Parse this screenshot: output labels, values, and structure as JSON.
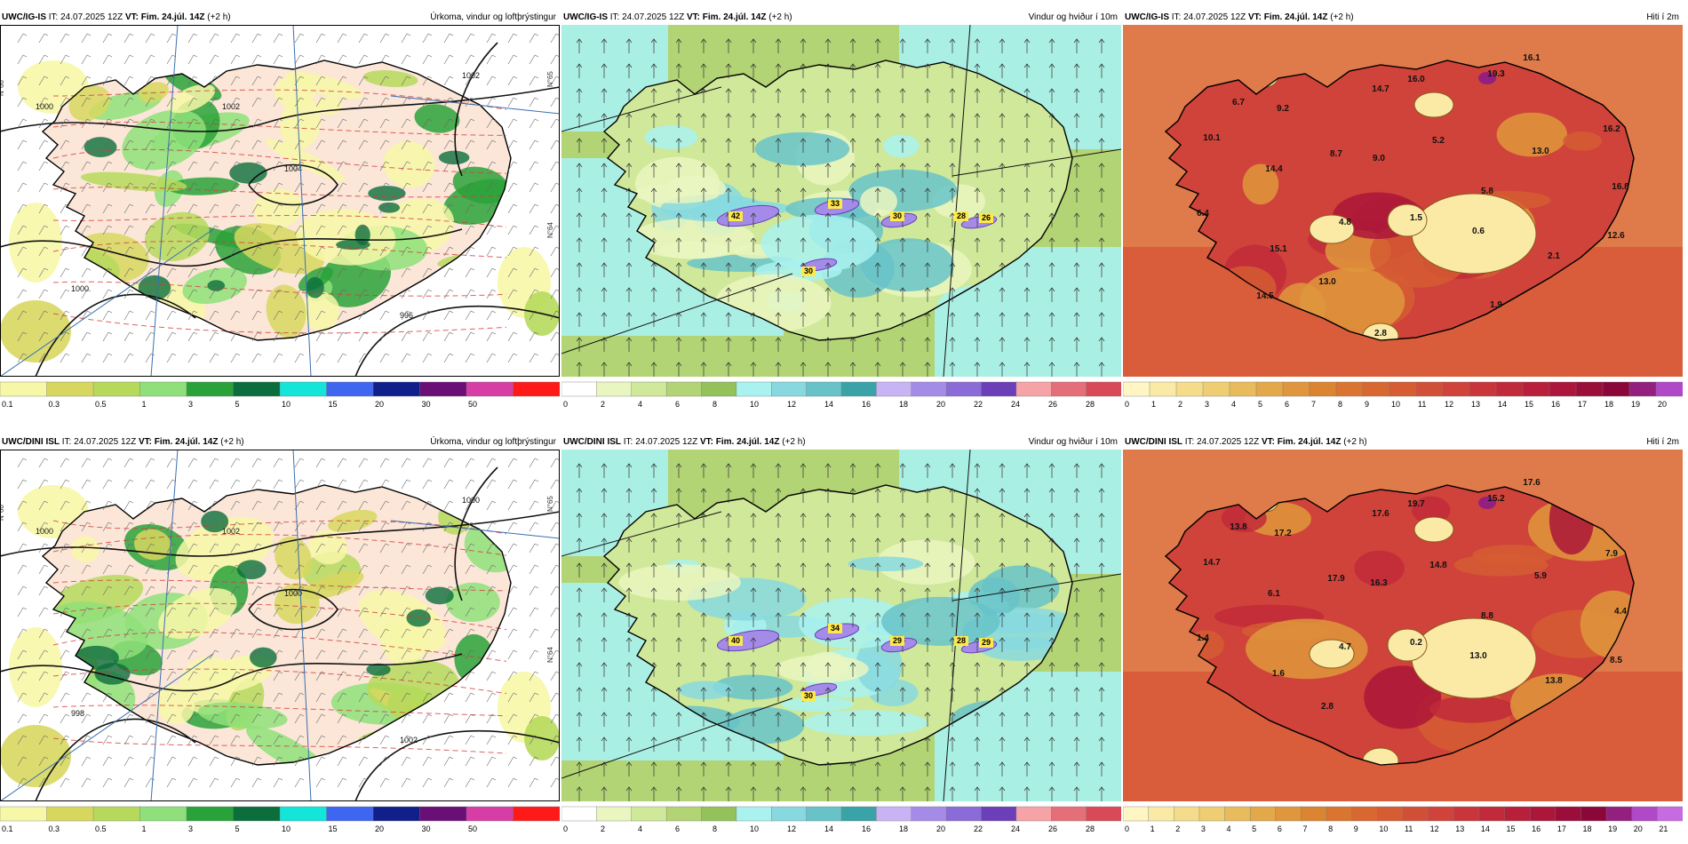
{
  "panels": [
    {
      "id": "ig-precip",
      "model": "UWC/IG-IS",
      "it_label": "IT:",
      "it_value": "24.07.2025 12Z",
      "vt_label": "VT:",
      "vt_value": "Fim. 24.júl. 14Z",
      "lead": "(+2 h)",
      "title": "Úrkoma, vindur og loftþrýstingur",
      "kind": "precip",
      "isobars": [
        "1000",
        "1002",
        "1004",
        "1000",
        "996",
        "1002"
      ],
      "grid_labels": [
        "N°65",
        "N°64",
        "N°66"
      ],
      "legend": {
        "ticks": [
          "0.1",
          "0.3",
          "0.5",
          "1",
          "3",
          "5",
          "10",
          "15",
          "20",
          "30",
          "50"
        ],
        "colors": [
          "#f7f7a8",
          "#d7d760",
          "#b6d95c",
          "#8fe07a",
          "#2aa23a",
          "#0b6e3c",
          "#13e5d9",
          "#3f66f0",
          "#101f8a",
          "#6a0f76",
          "#d63ea6",
          "#ff1a1a"
        ]
      }
    },
    {
      "id": "ig-wind",
      "model": "UWC/IG-IS",
      "it_label": "IT:",
      "it_value": "24.07.2025 12Z",
      "vt_label": "VT:",
      "vt_value": "Fim. 24.júl. 14Z",
      "lead": "(+2 h)",
      "title": "Vindur og hviður í 10m",
      "kind": "wind",
      "gust_labels": [
        "42",
        "33",
        "30",
        "28",
        "26",
        "30"
      ],
      "legend": {
        "ticks": [
          "0",
          "2",
          "4",
          "6",
          "8",
          "10",
          "12",
          "14",
          "16",
          "18",
          "20",
          "22",
          "24",
          "26",
          "28"
        ],
        "colors": [
          "#ffffff",
          "#eaf6c0",
          "#cfe89a",
          "#b2d474",
          "#93c25b",
          "#a9f2f0",
          "#87d9df",
          "#67c3c8",
          "#3aa3a8",
          "#c8b4f5",
          "#a58be8",
          "#8a6bd8",
          "#6a3fb8",
          "#f6a3a8",
          "#e56f78",
          "#d84a58"
        ]
      }
    },
    {
      "id": "ig-temp",
      "model": "UWC/IG-IS",
      "it_label": "IT:",
      "it_value": "24.07.2025 12Z",
      "vt_label": "VT:",
      "vt_value": "Fim. 24.júl. 14Z",
      "lead": "(+2 h)",
      "title": "Hiti í 2m",
      "kind": "temp",
      "temp_labels": [
        "16.1",
        "19.3",
        "16.0",
        "14.7",
        "6.7",
        "9.2",
        "10.1",
        "8.7",
        "9.0",
        "5.2",
        "13.0",
        "16.2",
        "14.4",
        "5.8",
        "16.8",
        "6.4",
        "4.8",
        "1.5",
        "0.6",
        "12.6",
        "15.1",
        "2.1",
        "13.0",
        "14.5",
        "1.9",
        "2.8"
      ],
      "legend": {
        "ticks": [
          "0",
          "1",
          "2",
          "3",
          "4",
          "5",
          "6",
          "7",
          "8",
          "9",
          "10",
          "11",
          "12",
          "13",
          "14",
          "15",
          "16",
          "17",
          "18",
          "19",
          "20"
        ],
        "colors": [
          "#fff6c4",
          "#fbeaa6",
          "#f5dc8a",
          "#efcd72",
          "#e8bc5d",
          "#e3a84a",
          "#df963c",
          "#db8432",
          "#d97530",
          "#d8682f",
          "#d55c33",
          "#d24f37",
          "#cf433a",
          "#c8363b",
          "#c12a3a",
          "#b71f3a",
          "#ab163a",
          "#9c0e3a",
          "#8c0739",
          "#93207e",
          "#b048c8"
        ]
      }
    },
    {
      "id": "dini-precip",
      "model": "UWC/DINI ISL",
      "it_label": "IT:",
      "it_value": "24.07.2025 12Z",
      "vt_label": "VT:",
      "vt_value": "Fim. 24.júl. 14Z",
      "lead": "(+2 h)",
      "title": "Úrkoma, vindur og loftþrýstingur",
      "kind": "precip",
      "isobars": [
        "1000",
        "1002",
        "1000",
        "998",
        "1002",
        "1000"
      ],
      "grid_labels": [
        "N°65",
        "N°64",
        "N°66"
      ],
      "legend": {
        "ticks": [
          "0.1",
          "0.3",
          "0.5",
          "1",
          "3",
          "5",
          "10",
          "15",
          "20",
          "30",
          "50"
        ],
        "colors": [
          "#f7f7a8",
          "#d7d760",
          "#b6d95c",
          "#8fe07a",
          "#2aa23a",
          "#0b6e3c",
          "#13e5d9",
          "#3f66f0",
          "#101f8a",
          "#6a0f76",
          "#d63ea6",
          "#ff1a1a"
        ]
      }
    },
    {
      "id": "dini-wind",
      "model": "UWC/DINI ISL",
      "it_label": "IT:",
      "it_value": "24.07.2025 12Z",
      "vt_label": "VT:",
      "vt_value": "Fim. 24.júl. 14Z",
      "lead": "(+2 h)",
      "title": "Vindur og hviður í 10m",
      "kind": "wind",
      "gust_labels": [
        "40",
        "34",
        "29",
        "28",
        "29",
        "30"
      ],
      "legend": {
        "ticks": [
          "0",
          "2",
          "4",
          "6",
          "8",
          "10",
          "12",
          "14",
          "16",
          "18",
          "20",
          "22",
          "24",
          "26",
          "28"
        ],
        "colors": [
          "#ffffff",
          "#eaf6c0",
          "#cfe89a",
          "#b2d474",
          "#93c25b",
          "#a9f2f0",
          "#87d9df",
          "#67c3c8",
          "#3aa3a8",
          "#c8b4f5",
          "#a58be8",
          "#8a6bd8",
          "#6a3fb8",
          "#f6a3a8",
          "#e56f78",
          "#d84a58"
        ]
      }
    },
    {
      "id": "dini-temp",
      "model": "UWC/DINI ISL",
      "it_label": "IT:",
      "it_value": "24.07.2025 12Z",
      "vt_label": "VT:",
      "vt_value": "Fim. 24.júl. 14Z",
      "lead": "(+2 h)",
      "title": "Hiti í 2m",
      "kind": "temp",
      "temp_labels": [
        "17.6",
        "15.2",
        "19.7",
        "17.6",
        "13.8",
        "17.2",
        "14.7",
        "17.9",
        "16.3",
        "14.8",
        "5.9",
        "7.9",
        "6.1",
        "8.8",
        "4.4",
        "1.4",
        "4.7",
        "0.2",
        "13.0",
        "8.5",
        "1.6",
        "13.8",
        "2.8"
      ],
      "legend": {
        "ticks": [
          "0",
          "1",
          "2",
          "3",
          "4",
          "5",
          "6",
          "7",
          "8",
          "9",
          "10",
          "11",
          "12",
          "13",
          "14",
          "15",
          "16",
          "17",
          "18",
          "19",
          "20",
          "21"
        ],
        "colors": [
          "#fff6c4",
          "#fbeaa6",
          "#f5dc8a",
          "#efcd72",
          "#e8bc5d",
          "#e3a84a",
          "#df963c",
          "#db8432",
          "#d97530",
          "#d8682f",
          "#d55c33",
          "#d24f37",
          "#cf433a",
          "#c8363b",
          "#c12a3a",
          "#b71f3a",
          "#ab163a",
          "#9c0e3a",
          "#8c0739",
          "#93207e",
          "#b048c8",
          "#c66be0"
        ]
      }
    }
  ]
}
